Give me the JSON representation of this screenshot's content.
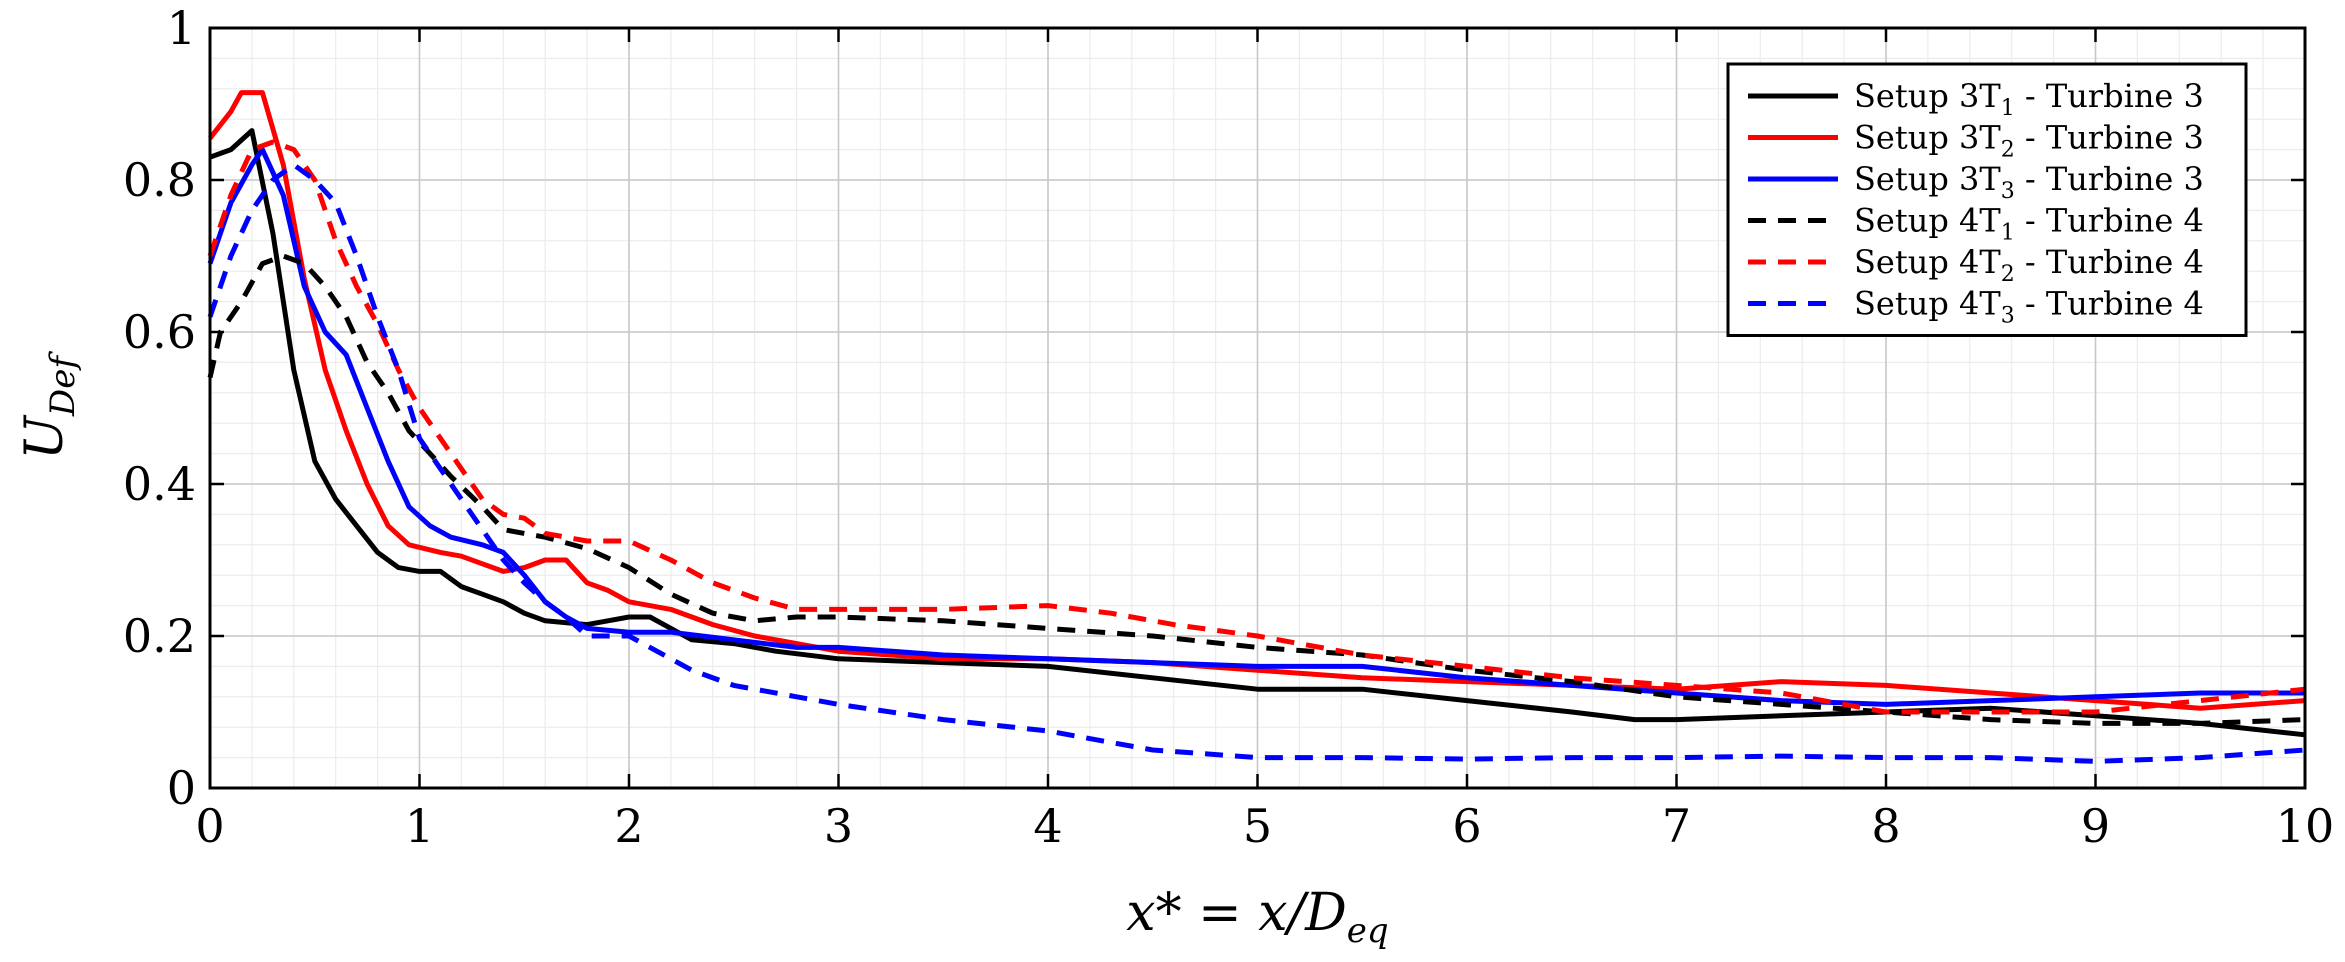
{
  "chart_data": {
    "type": "line",
    "xlabel": "x* = x/D",
    "xlabel_sub": "eq",
    "ylabel": "U",
    "ylabel_sub": "Def",
    "xlim": [
      0,
      10
    ],
    "ylim": [
      0,
      1
    ],
    "x_ticks": [
      0,
      1,
      2,
      3,
      4,
      5,
      6,
      7,
      8,
      9,
      10
    ],
    "y_ticks": [
      0,
      0.2,
      0.4,
      0.6,
      0.8,
      1
    ],
    "y_tick_labels": [
      "0",
      "0.2",
      "0.4",
      "0.6",
      "0.8",
      "1"
    ],
    "grid": true,
    "minor_grid": true,
    "legend_position": "top-right",
    "series": [
      {
        "name": "Setup 3T1 - Turbine 3",
        "legend_main": "Setup 3T",
        "legend_sub": "1",
        "legend_rest": " - Turbine 3",
        "color": "#000000",
        "dash": "solid",
        "points": [
          [
            0,
            0.83
          ],
          [
            0.1,
            0.84
          ],
          [
            0.2,
            0.865
          ],
          [
            0.3,
            0.73
          ],
          [
            0.4,
            0.55
          ],
          [
            0.5,
            0.43
          ],
          [
            0.6,
            0.38
          ],
          [
            0.7,
            0.345
          ],
          [
            0.8,
            0.31
          ],
          [
            0.9,
            0.29
          ],
          [
            1.0,
            0.285
          ],
          [
            1.1,
            0.285
          ],
          [
            1.2,
            0.265
          ],
          [
            1.3,
            0.255
          ],
          [
            1.4,
            0.245
          ],
          [
            1.5,
            0.23
          ],
          [
            1.6,
            0.22
          ],
          [
            1.8,
            0.215
          ],
          [
            1.9,
            0.22
          ],
          [
            2.0,
            0.225
          ],
          [
            2.1,
            0.225
          ],
          [
            2.2,
            0.21
          ],
          [
            2.3,
            0.195
          ],
          [
            2.5,
            0.19
          ],
          [
            2.7,
            0.18
          ],
          [
            3.0,
            0.17
          ],
          [
            3.5,
            0.165
          ],
          [
            4.0,
            0.16
          ],
          [
            4.5,
            0.145
          ],
          [
            5.0,
            0.13
          ],
          [
            5.5,
            0.13
          ],
          [
            6.0,
            0.115
          ],
          [
            6.5,
            0.1
          ],
          [
            6.8,
            0.09
          ],
          [
            7.0,
            0.09
          ],
          [
            7.5,
            0.095
          ],
          [
            8.0,
            0.1
          ],
          [
            8.5,
            0.105
          ],
          [
            9.0,
            0.095
          ],
          [
            9.5,
            0.085
          ],
          [
            10.0,
            0.07
          ]
        ]
      },
      {
        "name": "Setup 3T2 - Turbine 3",
        "legend_main": "Setup 3T",
        "legend_sub": "2",
        "legend_rest": " - Turbine 3",
        "color": "#ff0000",
        "dash": "solid",
        "points": [
          [
            0,
            0.855
          ],
          [
            0.1,
            0.89
          ],
          [
            0.15,
            0.915
          ],
          [
            0.25,
            0.915
          ],
          [
            0.35,
            0.82
          ],
          [
            0.45,
            0.67
          ],
          [
            0.55,
            0.55
          ],
          [
            0.65,
            0.47
          ],
          [
            0.75,
            0.4
          ],
          [
            0.85,
            0.345
          ],
          [
            0.95,
            0.32
          ],
          [
            1.1,
            0.31
          ],
          [
            1.2,
            0.305
          ],
          [
            1.3,
            0.295
          ],
          [
            1.4,
            0.285
          ],
          [
            1.5,
            0.29
          ],
          [
            1.6,
            0.3
          ],
          [
            1.7,
            0.3
          ],
          [
            1.8,
            0.27
          ],
          [
            1.9,
            0.26
          ],
          [
            2.0,
            0.245
          ],
          [
            2.2,
            0.235
          ],
          [
            2.4,
            0.215
          ],
          [
            2.6,
            0.2
          ],
          [
            2.8,
            0.19
          ],
          [
            3.0,
            0.18
          ],
          [
            3.5,
            0.17
          ],
          [
            4.0,
            0.17
          ],
          [
            4.5,
            0.165
          ],
          [
            5.0,
            0.155
          ],
          [
            5.5,
            0.145
          ],
          [
            6.0,
            0.14
          ],
          [
            6.5,
            0.135
          ],
          [
            7.0,
            0.13
          ],
          [
            7.5,
            0.14
          ],
          [
            8.0,
            0.135
          ],
          [
            8.5,
            0.125
          ],
          [
            9.0,
            0.115
          ],
          [
            9.5,
            0.105
          ],
          [
            10.0,
            0.115
          ]
        ]
      },
      {
        "name": "Setup 3T3 - Turbine 3",
        "legend_main": "Setup 3T",
        "legend_sub": "3",
        "legend_rest": " - Turbine 3",
        "color": "#0000ff",
        "dash": "solid",
        "points": [
          [
            0,
            0.69
          ],
          [
            0.1,
            0.77
          ],
          [
            0.2,
            0.82
          ],
          [
            0.25,
            0.84
          ],
          [
            0.35,
            0.78
          ],
          [
            0.45,
            0.66
          ],
          [
            0.55,
            0.6
          ],
          [
            0.65,
            0.57
          ],
          [
            0.75,
            0.5
          ],
          [
            0.85,
            0.43
          ],
          [
            0.95,
            0.37
          ],
          [
            1.05,
            0.345
          ],
          [
            1.15,
            0.33
          ],
          [
            1.3,
            0.32
          ],
          [
            1.4,
            0.31
          ],
          [
            1.5,
            0.28
          ],
          [
            1.6,
            0.245
          ],
          [
            1.7,
            0.225
          ],
          [
            1.8,
            0.21
          ],
          [
            2.0,
            0.205
          ],
          [
            2.2,
            0.205
          ],
          [
            2.5,
            0.195
          ],
          [
            2.8,
            0.185
          ],
          [
            3.0,
            0.185
          ],
          [
            3.5,
            0.175
          ],
          [
            4.0,
            0.17
          ],
          [
            4.5,
            0.165
          ],
          [
            5.0,
            0.16
          ],
          [
            5.5,
            0.16
          ],
          [
            6.0,
            0.145
          ],
          [
            6.5,
            0.135
          ],
          [
            7.0,
            0.125
          ],
          [
            7.5,
            0.115
          ],
          [
            8.0,
            0.11
          ],
          [
            8.5,
            0.115
          ],
          [
            9.0,
            0.12
          ],
          [
            9.5,
            0.125
          ],
          [
            10.0,
            0.125
          ]
        ]
      },
      {
        "name": "Setup 4T1 - Turbine 4",
        "legend_main": "Setup 4T",
        "legend_sub": "1",
        "legend_rest": " - Turbine 4",
        "color": "#000000",
        "dash": "dashed",
        "points": [
          [
            0,
            0.54
          ],
          [
            0.05,
            0.6
          ],
          [
            0.15,
            0.64
          ],
          [
            0.25,
            0.69
          ],
          [
            0.35,
            0.7
          ],
          [
            0.45,
            0.69
          ],
          [
            0.55,
            0.66
          ],
          [
            0.65,
            0.62
          ],
          [
            0.75,
            0.56
          ],
          [
            0.85,
            0.52
          ],
          [
            0.95,
            0.47
          ],
          [
            1.05,
            0.44
          ],
          [
            1.15,
            0.41
          ],
          [
            1.3,
            0.37
          ],
          [
            1.4,
            0.34
          ],
          [
            1.5,
            0.335
          ],
          [
            1.6,
            0.33
          ],
          [
            1.8,
            0.315
          ],
          [
            2.0,
            0.29
          ],
          [
            2.2,
            0.255
          ],
          [
            2.4,
            0.23
          ],
          [
            2.6,
            0.22
          ],
          [
            2.8,
            0.225
          ],
          [
            3.0,
            0.225
          ],
          [
            3.5,
            0.22
          ],
          [
            4.0,
            0.21
          ],
          [
            4.5,
            0.2
          ],
          [
            5.0,
            0.185
          ],
          [
            5.5,
            0.175
          ],
          [
            6.0,
            0.155
          ],
          [
            6.5,
            0.14
          ],
          [
            7.0,
            0.12
          ],
          [
            7.5,
            0.11
          ],
          [
            8.0,
            0.1
          ],
          [
            8.5,
            0.09
          ],
          [
            9.0,
            0.085
          ],
          [
            9.5,
            0.085
          ],
          [
            10.0,
            0.09
          ]
        ]
      },
      {
        "name": "Setup 4T2 - Turbine 4",
        "legend_main": "Setup 4T",
        "legend_sub": "2",
        "legend_rest": " - Turbine 4",
        "color": "#ff0000",
        "dash": "dashed",
        "points": [
          [
            0,
            0.7
          ],
          [
            0.1,
            0.78
          ],
          [
            0.2,
            0.84
          ],
          [
            0.3,
            0.85
          ],
          [
            0.4,
            0.84
          ],
          [
            0.5,
            0.8
          ],
          [
            0.6,
            0.72
          ],
          [
            0.7,
            0.66
          ],
          [
            0.8,
            0.61
          ],
          [
            0.9,
            0.55
          ],
          [
            1.0,
            0.5
          ],
          [
            1.1,
            0.46
          ],
          [
            1.2,
            0.42
          ],
          [
            1.3,
            0.38
          ],
          [
            1.4,
            0.36
          ],
          [
            1.5,
            0.355
          ],
          [
            1.6,
            0.335
          ],
          [
            1.7,
            0.33
          ],
          [
            1.8,
            0.325
          ],
          [
            2.0,
            0.325
          ],
          [
            2.2,
            0.3
          ],
          [
            2.4,
            0.27
          ],
          [
            2.6,
            0.25
          ],
          [
            2.8,
            0.235
          ],
          [
            3.0,
            0.235
          ],
          [
            3.5,
            0.235
          ],
          [
            4.0,
            0.24
          ],
          [
            4.3,
            0.23
          ],
          [
            4.6,
            0.215
          ],
          [
            5.0,
            0.2
          ],
          [
            5.5,
            0.175
          ],
          [
            6.0,
            0.16
          ],
          [
            6.5,
            0.145
          ],
          [
            7.0,
            0.135
          ],
          [
            7.5,
            0.125
          ],
          [
            8.0,
            0.1
          ],
          [
            8.5,
            0.1
          ],
          [
            9.0,
            0.1
          ],
          [
            9.5,
            0.115
          ],
          [
            10.0,
            0.13
          ]
        ]
      },
      {
        "name": "Setup 4T3 - Turbine 4",
        "legend_main": "Setup 4T",
        "legend_sub": "3",
        "legend_rest": " - Turbine 4",
        "color": "#0000ff",
        "dash": "dashed",
        "points": [
          [
            0,
            0.62
          ],
          [
            0.1,
            0.7
          ],
          [
            0.2,
            0.76
          ],
          [
            0.3,
            0.8
          ],
          [
            0.4,
            0.82
          ],
          [
            0.5,
            0.8
          ],
          [
            0.6,
            0.77
          ],
          [
            0.7,
            0.7
          ],
          [
            0.8,
            0.62
          ],
          [
            0.9,
            0.55
          ],
          [
            1.0,
            0.46
          ],
          [
            1.1,
            0.42
          ],
          [
            1.2,
            0.38
          ],
          [
            1.3,
            0.34
          ],
          [
            1.4,
            0.3
          ],
          [
            1.5,
            0.27
          ],
          [
            1.6,
            0.245
          ],
          [
            1.7,
            0.225
          ],
          [
            1.8,
            0.2
          ],
          [
            1.9,
            0.2
          ],
          [
            2.0,
            0.2
          ],
          [
            2.1,
            0.185
          ],
          [
            2.2,
            0.17
          ],
          [
            2.3,
            0.155
          ],
          [
            2.5,
            0.135
          ],
          [
            2.8,
            0.12
          ],
          [
            3.0,
            0.11
          ],
          [
            3.5,
            0.09
          ],
          [
            4.0,
            0.075
          ],
          [
            4.5,
            0.05
          ],
          [
            5.0,
            0.04
          ],
          [
            5.5,
            0.04
          ],
          [
            6.0,
            0.038
          ],
          [
            6.5,
            0.04
          ],
          [
            7.0,
            0.04
          ],
          [
            7.5,
            0.042
          ],
          [
            8.0,
            0.04
          ],
          [
            8.5,
            0.04
          ],
          [
            9.0,
            0.035
          ],
          [
            9.5,
            0.04
          ],
          [
            10.0,
            0.05
          ]
        ]
      }
    ]
  }
}
